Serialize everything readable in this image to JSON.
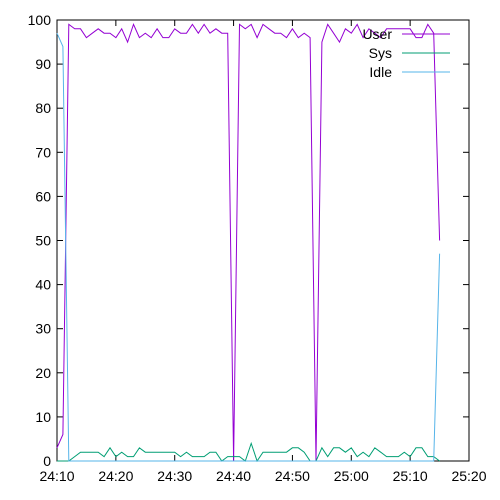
{
  "chart_data": {
    "type": "line",
    "x_ticks": [
      "24:10",
      "24:20",
      "24:30",
      "24:40",
      "24:50",
      "25:00",
      "25:10",
      "25:20"
    ],
    "y_ticks": [
      0,
      10,
      20,
      30,
      40,
      50,
      60,
      70,
      80,
      90,
      100
    ],
    "xlim_minutes": [
      0,
      70
    ],
    "ylim": [
      0,
      100
    ],
    "grid": false,
    "legend_position": "top-right",
    "series": [
      {
        "name": "User",
        "color": "#9400d3",
        "x": [
          0,
          1,
          2,
          3,
          4,
          5,
          6,
          7,
          8,
          9,
          10,
          11,
          12,
          13,
          14,
          15,
          16,
          17,
          18,
          19,
          20,
          21,
          22,
          23,
          24,
          25,
          26,
          27,
          28,
          29,
          30,
          31,
          32,
          33,
          34,
          35,
          36,
          37,
          38,
          39,
          40,
          41,
          42,
          43,
          44,
          45,
          46,
          47,
          48,
          49,
          50,
          51,
          52,
          53,
          54,
          55,
          56,
          57,
          58,
          59,
          60,
          61,
          62,
          63,
          64,
          65
        ],
        "y": [
          3,
          6,
          99,
          98,
          98,
          96,
          97,
          98,
          97,
          97,
          96,
          98,
          95,
          99,
          96,
          97,
          96,
          98,
          96,
          96,
          98,
          97,
          97,
          99,
          97,
          99,
          97,
          98,
          97,
          97,
          0,
          99,
          98,
          99,
          96,
          99,
          98,
          97,
          97,
          96,
          98,
          96,
          97,
          96,
          0,
          95,
          99,
          97,
          95,
          98,
          97,
          99,
          96,
          98,
          97,
          96,
          98,
          98,
          98,
          98,
          98,
          96,
          96,
          99,
          97,
          50
        ]
      },
      {
        "name": "Sys",
        "color": "#009e73",
        "x": [
          0,
          1,
          2,
          3,
          4,
          5,
          6,
          7,
          8,
          9,
          10,
          11,
          12,
          13,
          14,
          15,
          16,
          17,
          18,
          19,
          20,
          21,
          22,
          23,
          24,
          25,
          26,
          27,
          28,
          29,
          30,
          31,
          32,
          33,
          34,
          35,
          36,
          37,
          38,
          39,
          40,
          41,
          42,
          43,
          44,
          45,
          46,
          47,
          48,
          49,
          50,
          51,
          52,
          53,
          54,
          55,
          56,
          57,
          58,
          59,
          60,
          61,
          62,
          63,
          64,
          65
        ],
        "y": [
          0,
          0,
          0,
          1,
          2,
          2,
          2,
          2,
          1,
          3,
          1,
          2,
          1,
          1,
          3,
          2,
          2,
          2,
          2,
          2,
          2,
          1,
          2,
          1,
          1,
          1,
          2,
          2,
          0,
          1,
          1,
          1,
          0,
          4,
          0,
          2,
          2,
          2,
          2,
          2,
          3,
          3,
          2,
          0,
          0,
          3,
          1,
          3,
          3,
          2,
          3,
          1,
          2,
          1,
          3,
          2,
          1,
          1,
          1,
          2,
          1,
          3,
          3,
          1,
          1,
          0
        ]
      },
      {
        "name": "Idle",
        "color": "#56b4e9",
        "x": [
          0,
          1,
          2,
          3,
          4,
          5,
          6,
          7,
          8,
          9,
          10,
          11,
          12,
          13,
          14,
          15,
          16,
          17,
          18,
          19,
          20,
          21,
          22,
          23,
          24,
          25,
          26,
          27,
          28,
          29,
          30,
          31,
          32,
          33,
          34,
          35,
          36,
          37,
          38,
          39,
          40,
          41,
          42,
          43,
          44,
          45,
          46,
          47,
          48,
          49,
          50,
          51,
          52,
          53,
          54,
          55,
          56,
          57,
          58,
          59,
          60,
          61,
          62,
          63,
          64,
          65
        ],
        "y": [
          97,
          94,
          0,
          0,
          0,
          0,
          0,
          0,
          0,
          0,
          0,
          0,
          0,
          0,
          0,
          0,
          0,
          0,
          0,
          0,
          0,
          0,
          0,
          0,
          0,
          0,
          0,
          0,
          0,
          0,
          0,
          0,
          0,
          0,
          0,
          0,
          0,
          0,
          0,
          0,
          0,
          0,
          0,
          0,
          0,
          0,
          0,
          0,
          0,
          0,
          0,
          0,
          0,
          0,
          0,
          0,
          0,
          0,
          0,
          0,
          0,
          0,
          0,
          0,
          0,
          47
        ]
      }
    ]
  }
}
